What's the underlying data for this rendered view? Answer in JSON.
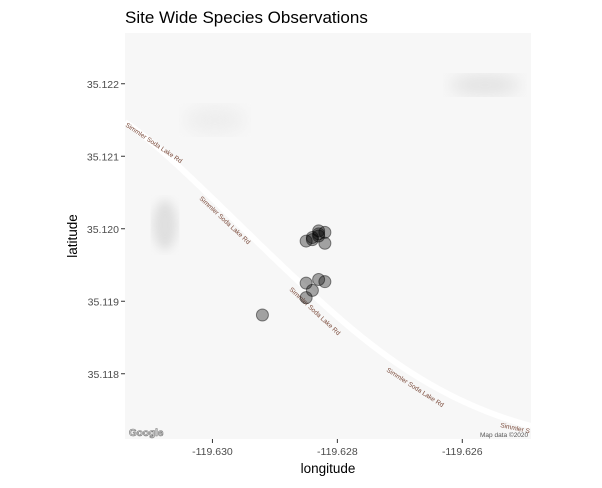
{
  "chart_data": {
    "type": "scatter",
    "title": "Site Wide Species Observations",
    "xlabel": "longitude",
    "ylabel": "latitude",
    "xlim": [
      -119.6314,
      -119.6249
    ],
    "ylim": [
      35.1171,
      35.1227
    ],
    "x_ticks": [
      -119.63,
      -119.628,
      -119.626
    ],
    "y_ticks": [
      35.118,
      35.119,
      35.12,
      35.121,
      35.122
    ],
    "x_tick_labels": [
      "-119.630",
      "-119.628",
      "-119.626"
    ],
    "y_tick_labels": [
      "35.118",
      "35.119",
      "35.120",
      "35.121",
      "35.122"
    ],
    "grid": false,
    "legend": "none",
    "point_color": "#000000",
    "point_opacity": 0.35,
    "points": [
      {
        "x": -119.6292,
        "y": 35.11881
      },
      {
        "x": -119.6285,
        "y": 35.11983
      },
      {
        "x": -119.6284,
        "y": 35.11988
      },
      {
        "x": -119.6283,
        "y": 35.11993
      },
      {
        "x": -119.6282,
        "y": 35.11995
      },
      {
        "x": -119.6283,
        "y": 35.1199
      },
      {
        "x": -119.6283,
        "y": 35.11997
      },
      {
        "x": -119.6284,
        "y": 35.11985
      },
      {
        "x": -119.6282,
        "y": 35.1198
      },
      {
        "x": -119.6285,
        "y": 35.11925
      },
      {
        "x": -119.6283,
        "y": 35.1193
      },
      {
        "x": -119.6282,
        "y": 35.11927
      },
      {
        "x": -119.6284,
        "y": 35.11915
      },
      {
        "x": -119.6285,
        "y": 35.11905
      }
    ],
    "basemap": {
      "road_labels": [
        "Simmler Soda Lake Rd",
        "Simmler Soda Lake Rd",
        "Simmler Soda Lake Rd",
        "Simmler Soda Lake Rd",
        "Simmler S"
      ],
      "credit": "Map data ©2020",
      "logo": "Google"
    }
  }
}
